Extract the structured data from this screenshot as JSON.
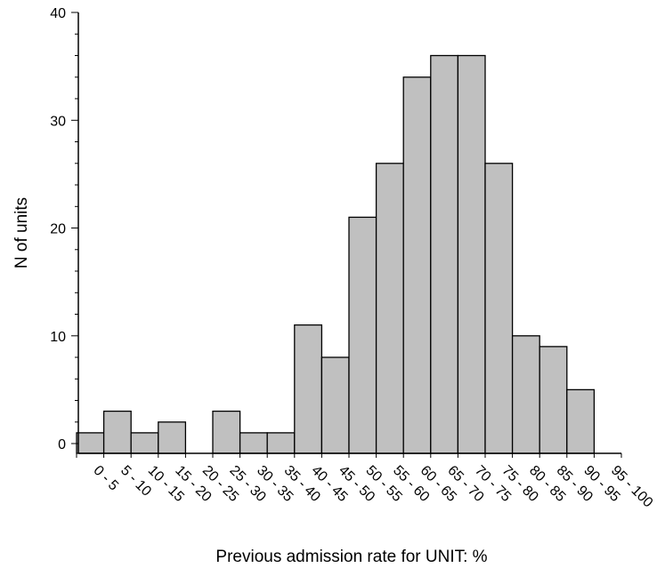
{
  "chart_data": {
    "type": "bar",
    "title": "",
    "xlabel": "Previous admission rate for UNIT: %",
    "ylabel": "N of units",
    "ylim": [
      0,
      40
    ],
    "y_ticks": [
      "0",
      "10",
      "20",
      "30",
      "40"
    ],
    "categories": [
      "0 - 5",
      "5 - 10",
      "10 - 15",
      "15 - 20",
      "20 - 25",
      "25 - 30",
      "30 - 35",
      "35 - 40",
      "40 - 45",
      "45 - 50",
      "50 - 55",
      "55 - 60",
      "60 - 65",
      "65 - 70",
      "70 - 75",
      "75 - 80",
      "80 - 85",
      "85 - 90",
      "90 - 95",
      "95 - 100"
    ],
    "values": [
      1,
      3,
      1,
      2,
      0,
      3,
      1,
      1,
      11,
      8,
      21,
      26,
      34,
      36,
      36,
      26,
      10,
      9,
      5,
      0
    ],
    "grid": false,
    "legend": "none",
    "colors": {
      "bar_fill": "#c0c0c0",
      "bar_stroke": "#000000",
      "axis": "#000000"
    }
  }
}
